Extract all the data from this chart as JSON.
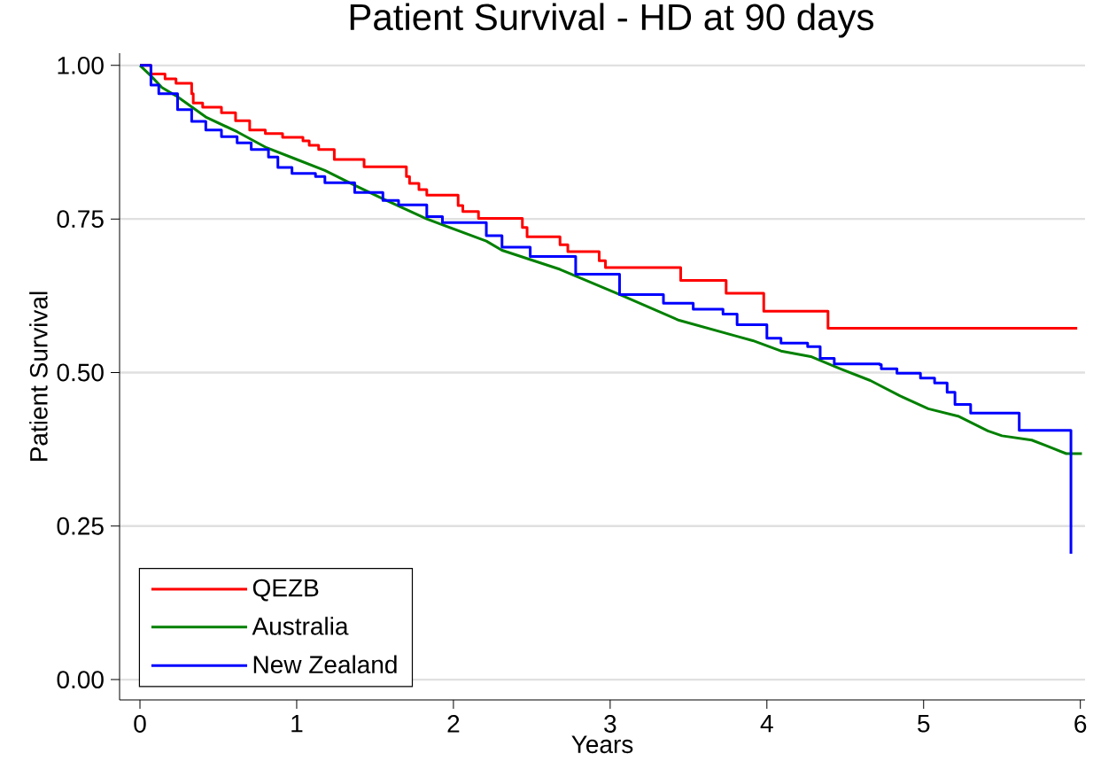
{
  "chart_data": {
    "type": "step",
    "title": "Patient Survival - HD at 90 days",
    "xlabel": "Years",
    "ylabel": "Patient Survival",
    "xlim": [
      -0.13,
      6.03
    ],
    "ylim": [
      -0.033,
      1.02
    ],
    "xticks": [
      0,
      1,
      2,
      3,
      4,
      5,
      6
    ],
    "yticks": [
      {
        "value": 0,
        "label": "0.00"
      },
      {
        "value": 0.25,
        "label": "0.25"
      },
      {
        "value": 0.5,
        "label": "0.50"
      },
      {
        "value": 0.75,
        "label": "0.75"
      },
      {
        "value": 1,
        "label": "1.00"
      }
    ],
    "grid": "y",
    "legend": "bottom left",
    "series": [
      {
        "name": "QEZB",
        "color": "#ff0000",
        "x": [
          0,
          0.07,
          0.16,
          0.23,
          0.33,
          0.34,
          0.4,
          0.52,
          0.61,
          0.7,
          0.8,
          0.91,
          1.04,
          1.08,
          1.14,
          1.24,
          1.43,
          1.7,
          1.72,
          1.78,
          1.83,
          2.03,
          2.06,
          2.16,
          2.44,
          2.47,
          2.68,
          2.73,
          2.93,
          2.97,
          3.45,
          3.74,
          3.98,
          4.39,
          5.98
        ],
        "values": [
          1.0,
          0.986,
          0.978,
          0.971,
          0.954,
          0.939,
          0.932,
          0.923,
          0.91,
          0.895,
          0.889,
          0.883,
          0.877,
          0.87,
          0.863,
          0.847,
          0.835,
          0.819,
          0.808,
          0.798,
          0.789,
          0.772,
          0.762,
          0.751,
          0.736,
          0.721,
          0.708,
          0.697,
          0.682,
          0.671,
          0.65,
          0.629,
          0.6,
          0.572,
          0.572
        ]
      },
      {
        "name": "Australia",
        "type": "line",
        "color": "#008000",
        "x": [
          0,
          0.07,
          0.14,
          0.24,
          0.42,
          0.62,
          0.8,
          0.99,
          1.18,
          1.37,
          1.55,
          1.83,
          2.21,
          2.31,
          2.68,
          3.06,
          3.44,
          3.81,
          3.91,
          4.09,
          4.28,
          4.47,
          4.66,
          4.85,
          5.03,
          5.22,
          5.41,
          5.5,
          5.69,
          5.78,
          5.91,
          6.01
        ],
        "values": [
          1.0,
          0.983,
          0.964,
          0.949,
          0.916,
          0.892,
          0.867,
          0.848,
          0.829,
          0.805,
          0.783,
          0.75,
          0.714,
          0.699,
          0.668,
          0.627,
          0.585,
          0.559,
          0.552,
          0.535,
          0.526,
          0.506,
          0.487,
          0.462,
          0.441,
          0.429,
          0.405,
          0.397,
          0.39,
          0.381,
          0.368,
          0.368
        ]
      },
      {
        "name": "New Zealand",
        "color": "#0000ff",
        "x": [
          0,
          0.07,
          0.12,
          0.24,
          0.33,
          0.42,
          0.52,
          0.62,
          0.71,
          0.82,
          0.88,
          0.97,
          1.12,
          1.18,
          1.37,
          1.55,
          1.65,
          1.83,
          1.93,
          2.21,
          2.31,
          2.49,
          2.78,
          3.06,
          3.34,
          3.53,
          3.72,
          3.81,
          4.0,
          4.09,
          4.26,
          4.34,
          4.43,
          4.72,
          4.73,
          4.83,
          4.98,
          5.07,
          5.15,
          5.2,
          5.3,
          5.61,
          5.94
        ],
        "values": [
          1.0,
          0.968,
          0.954,
          0.928,
          0.909,
          0.895,
          0.884,
          0.874,
          0.863,
          0.851,
          0.834,
          0.824,
          0.819,
          0.809,
          0.793,
          0.78,
          0.773,
          0.754,
          0.744,
          0.723,
          0.704,
          0.689,
          0.66,
          0.627,
          0.613,
          0.603,
          0.595,
          0.578,
          0.556,
          0.548,
          0.542,
          0.523,
          0.514,
          0.513,
          0.506,
          0.499,
          0.491,
          0.483,
          0.468,
          0.448,
          0.434,
          0.406,
          0.205
        ]
      }
    ]
  }
}
